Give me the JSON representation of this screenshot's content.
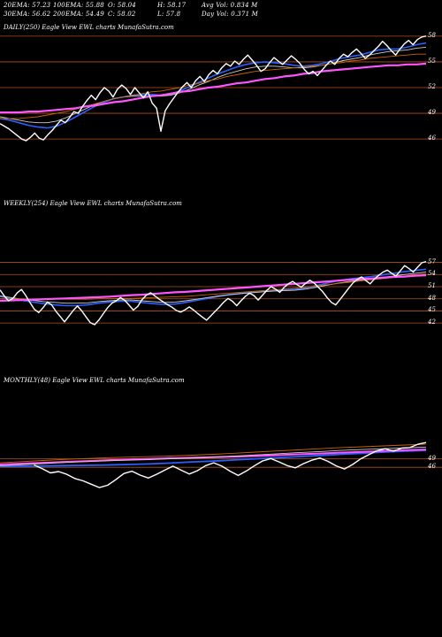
{
  "header": {
    "row1": [
      "20EMA: 57.23",
      "100EMA: 55.88",
      "O: 58.04",
      "H: 58.17",
      "Avg Vol: 0.834  M"
    ],
    "row2": [
      "30EMA: 56.62",
      "200EMA: 54.49",
      "C: 58.02",
      "L: 57.8",
      "Day Vol: 0.371  M"
    ]
  },
  "colors": {
    "price": "#ffffff",
    "ema_fast": "#2b5fff",
    "ema_slow": "#ff55ff",
    "ema_mid": "#cccccc",
    "ema_orange": "#c86400",
    "ema_brown": "#b87333",
    "gridline": "#b4501e"
  },
  "chart_data": [
    {
      "type": "line",
      "title": "DAILY(250) Eagle  View  EWL  charts MunafaSutra.com",
      "y_ticks": [
        58,
        55,
        52,
        49,
        46
      ],
      "ylim": [
        45.5,
        58.5
      ],
      "series": [
        {
          "role": "price",
          "values": [
            47.8,
            47.5,
            47.2,
            46.8,
            46.4,
            46.0,
            45.8,
            46.2,
            46.7,
            46.1,
            45.9,
            46.5,
            47.0,
            47.6,
            48.2,
            47.9,
            48.5,
            49.2,
            49.0,
            49.8,
            50.5,
            51.1,
            50.6,
            51.4,
            52.0,
            51.6,
            50.9,
            51.8,
            52.3,
            51.9,
            51.2,
            52.0,
            51.4,
            50.8,
            51.5,
            50.2,
            49.6,
            46.9,
            49.3,
            50.1,
            50.8,
            51.5,
            52.1,
            52.6,
            52.0,
            52.8,
            53.3,
            52.7,
            53.5,
            54.0,
            53.6,
            54.3,
            54.8,
            54.5,
            55.1,
            54.7,
            55.3,
            55.8,
            55.2,
            54.6,
            53.9,
            54.2,
            54.9,
            55.5,
            55.1,
            54.7,
            55.2,
            55.7,
            55.3,
            54.8,
            54.1,
            53.6,
            53.9,
            53.4,
            54.0,
            54.6,
            55.1,
            54.7,
            55.4,
            55.9,
            55.6,
            56.1,
            56.5,
            56.0,
            55.4,
            55.8,
            56.3,
            56.8,
            57.4,
            56.9,
            56.3,
            55.8,
            56.5,
            57.1,
            57.5,
            57.0,
            57.6,
            57.9,
            58.0
          ]
        },
        {
          "role": "ema20",
          "values": [
            48.4,
            48.2,
            47.9,
            47.6,
            47.4,
            47.3,
            47.5,
            48.0,
            48.6,
            49.2,
            49.8,
            50.3,
            50.7,
            50.9,
            51.1,
            51.2,
            51.2,
            51.1,
            51.2,
            51.6,
            52.1,
            52.6,
            53.1,
            53.6,
            54.0,
            54.4,
            54.7,
            54.9,
            55.0,
            54.9,
            54.8,
            54.6,
            54.5,
            54.6,
            54.8,
            55.1,
            55.4,
            55.6,
            55.8,
            56.1,
            56.4,
            56.5,
            56.5,
            56.7,
            57.0,
            57.2
          ]
        },
        {
          "role": "ema30",
          "values": [
            48.6,
            48.4,
            48.2,
            48.0,
            47.9,
            47.9,
            48.1,
            48.5,
            49.0,
            49.5,
            50.0,
            50.4,
            50.7,
            50.9,
            51.0,
            51.0,
            51.0,
            51.0,
            51.1,
            51.4,
            51.8,
            52.3,
            52.7,
            53.2,
            53.6,
            53.9,
            54.2,
            54.4,
            54.5,
            54.5,
            54.4,
            54.3,
            54.3,
            54.4,
            54.6,
            54.8,
            55.1,
            55.3,
            55.5,
            55.8,
            56.0,
            56.2,
            56.3,
            56.4,
            56.6,
            56.7
          ]
        },
        {
          "role": "ema100",
          "values": [
            48.4,
            48.4,
            48.4,
            48.5,
            48.6,
            48.8,
            49.0,
            49.2,
            49.5,
            49.8,
            50.1,
            50.4,
            50.7,
            50.9,
            51.1,
            51.3,
            51.5,
            51.6,
            51.8,
            52.0,
            52.3,
            52.5,
            52.8,
            53.0,
            53.3,
            53.5,
            53.7,
            53.9,
            54.0,
            54.1,
            54.2,
            54.3,
            54.4,
            54.5,
            54.6,
            54.8,
            54.9,
            55.1,
            55.2,
            55.4,
            55.5,
            55.6,
            55.7,
            55.8,
            55.9,
            55.9
          ]
        },
        {
          "role": "ema200",
          "values": [
            49.1,
            49.1,
            49.1,
            49.2,
            49.2,
            49.3,
            49.4,
            49.5,
            49.6,
            49.8,
            49.9,
            50.1,
            50.3,
            50.4,
            50.6,
            50.8,
            51.0,
            51.1,
            51.3,
            51.5,
            51.6,
            51.8,
            52.0,
            52.1,
            52.3,
            52.5,
            52.6,
            52.8,
            53.0,
            53.1,
            53.3,
            53.4,
            53.6,
            53.7,
            53.9,
            54.0,
            54.1,
            54.2,
            54.3,
            54.4,
            54.5,
            54.6,
            54.6,
            54.7,
            54.7,
            54.8
          ]
        }
      ]
    },
    {
      "type": "line",
      "title": "WEEKLY(254) Eagle  View  EWL  charts MunafaSutra.com",
      "y_ticks": [
        57,
        54,
        51,
        48,
        45,
        42
      ],
      "ylim": [
        40.5,
        58.0
      ],
      "series": [
        {
          "role": "price",
          "values": [
            50.2,
            48.7,
            47.5,
            48.1,
            49.5,
            50.3,
            48.8,
            47.0,
            45.4,
            44.6,
            45.8,
            47.2,
            46.5,
            44.9,
            43.6,
            42.3,
            43.7,
            45.1,
            46.2,
            45.0,
            43.5,
            42.1,
            41.6,
            42.8,
            44.3,
            45.8,
            46.9,
            47.5,
            48.3,
            47.6,
            46.4,
            45.2,
            46.1,
            47.8,
            48.9,
            49.5,
            48.7,
            47.9,
            47.2,
            46.5,
            45.9,
            45.1,
            44.7,
            45.3,
            46.0,
            45.2,
            44.3,
            43.5,
            42.7,
            43.8,
            44.9,
            46.0,
            47.2,
            48.1,
            47.4,
            46.3,
            47.5,
            48.6,
            49.4,
            48.8,
            47.7,
            48.9,
            50.1,
            51.0,
            50.4,
            49.6,
            50.8,
            51.7,
            52.3,
            51.5,
            50.9,
            51.8,
            52.6,
            51.9,
            50.8,
            49.7,
            48.3,
            47.1,
            46.5,
            47.8,
            49.2,
            50.6,
            51.9,
            52.8,
            53.4,
            52.5,
            51.7,
            52.9,
            53.8,
            54.6,
            55.1,
            54.3,
            53.6,
            54.9,
            56.2,
            55.5,
            54.6,
            55.8,
            56.9,
            57.2
          ]
        },
        {
          "role": "ema20",
          "values": [
            48.6,
            48.1,
            47.6,
            47.2,
            46.8,
            46.5,
            46.3,
            46.3,
            46.5,
            46.9,
            47.2,
            47.4,
            47.4,
            47.1,
            46.8,
            46.6,
            46.7,
            47.1,
            47.6,
            48.1,
            48.6,
            49.0,
            49.3,
            49.6,
            49.9,
            50.1,
            50.2,
            50.3,
            50.7,
            51.3,
            51.9,
            52.5,
            52.9,
            53.2,
            53.5,
            53.9,
            54.3,
            54.7,
            55.0,
            55.3
          ]
        },
        {
          "role": "ema30",
          "values": [
            48.7,
            48.3,
            47.9,
            47.6,
            47.3,
            47.1,
            46.9,
            46.9,
            47.0,
            47.3,
            47.5,
            47.7,
            47.7,
            47.5,
            47.3,
            47.1,
            47.2,
            47.5,
            47.9,
            48.3,
            48.7,
            49.0,
            49.3,
            49.5,
            49.7,
            49.9,
            50.0,
            50.1,
            50.4,
            50.9,
            51.4,
            51.9,
            52.3,
            52.6,
            52.9,
            53.3,
            53.6,
            54.0,
            54.3,
            54.6
          ]
        },
        {
          "role": "ema100",
          "values": [
            48.0,
            48.0,
            48.0,
            47.9,
            47.9,
            47.9,
            47.9,
            47.9,
            47.9,
            48.0,
            48.0,
            48.1,
            48.1,
            48.2,
            48.3,
            48.4,
            48.5,
            48.6,
            48.8,
            49.0,
            49.2,
            49.4,
            49.6,
            49.8,
            50.0,
            50.2,
            50.4,
            50.6,
            50.9,
            51.2,
            51.5,
            51.8,
            52.1,
            52.4,
            52.7,
            53.0,
            53.3,
            53.6,
            53.9,
            54.2
          ]
        },
        {
          "role": "ema200",
          "values": [
            47.5,
            47.6,
            47.7,
            47.8,
            47.9,
            48.0,
            48.1,
            48.2,
            48.3,
            48.4,
            48.5,
            48.7,
            48.9,
            49.0,
            49.2,
            49.4,
            49.6,
            49.7,
            49.9,
            50.1,
            50.3,
            50.5,
            50.7,
            50.9,
            51.1,
            51.3,
            51.5,
            51.7,
            51.9,
            52.1,
            52.3,
            52.5,
            52.7,
            52.9,
            53.0,
            53.2,
            53.4,
            53.5,
            53.7,
            53.8
          ]
        }
      ]
    },
    {
      "type": "line",
      "title": "MONTHLY(48) Eagle  View  EWL  charts MunafaSutra.com",
      "y_ticks": [
        49,
        46
      ],
      "ylim": [
        36.0,
        58.0
      ],
      "series": [
        {
          "role": "price",
          "values": [
            46.8,
            45.5,
            44.0,
            44.5,
            43.5,
            42.0,
            41.2,
            40.0,
            38.8,
            39.6,
            41.6,
            43.8,
            44.6,
            43.2,
            42.2,
            43.5,
            45.0,
            46.4,
            45.0,
            43.6,
            44.8,
            46.6,
            47.6,
            46.4,
            44.6,
            43.1,
            44.7,
            46.6,
            48.3,
            49.1,
            47.9,
            46.6,
            45.8,
            47.3,
            48.5,
            49.3,
            48.1,
            46.5,
            45.4,
            47.0,
            49.0,
            50.5,
            51.9,
            52.6,
            51.7,
            52.8,
            53.0,
            54.2,
            54.8
          ]
        },
        {
          "role": "ema_blue",
          "values": [
            46.3,
            46.4,
            46.5,
            46.6,
            46.7,
            46.8,
            47.0,
            47.2,
            47.5,
            47.9,
            48.2,
            48.6,
            49.0,
            49.4,
            49.8,
            50.2,
            50.6,
            51.0,
            51.4,
            51.7,
            52.0
          ]
        },
        {
          "role": "ema_pink",
          "values": [
            47.0,
            47.3,
            47.6,
            47.9,
            48.2,
            48.5,
            48.8,
            49.0,
            49.2,
            49.4,
            49.6,
            49.8,
            50.0,
            50.3,
            50.6,
            50.9,
            51.2,
            51.5,
            51.8,
            52.1,
            52.3
          ]
        },
        {
          "role": "ema_grey",
          "values": [
            46.5,
            46.9,
            47.3,
            47.7,
            48.0,
            48.3,
            48.5,
            48.7,
            49.0,
            49.3,
            49.6,
            50.0,
            50.4,
            50.8,
            51.2,
            51.6,
            52.0,
            52.3,
            52.6,
            52.9,
            53.2
          ]
        },
        {
          "role": "ema_orange",
          "values": [
            47.6,
            48.0,
            48.4,
            48.8,
            49.1,
            49.4,
            49.6,
            49.8,
            50.0,
            50.3,
            50.6,
            51.0,
            51.4,
            51.8,
            52.2,
            52.6,
            53.0,
            53.3,
            53.6,
            53.9,
            54.2
          ]
        }
      ]
    }
  ]
}
